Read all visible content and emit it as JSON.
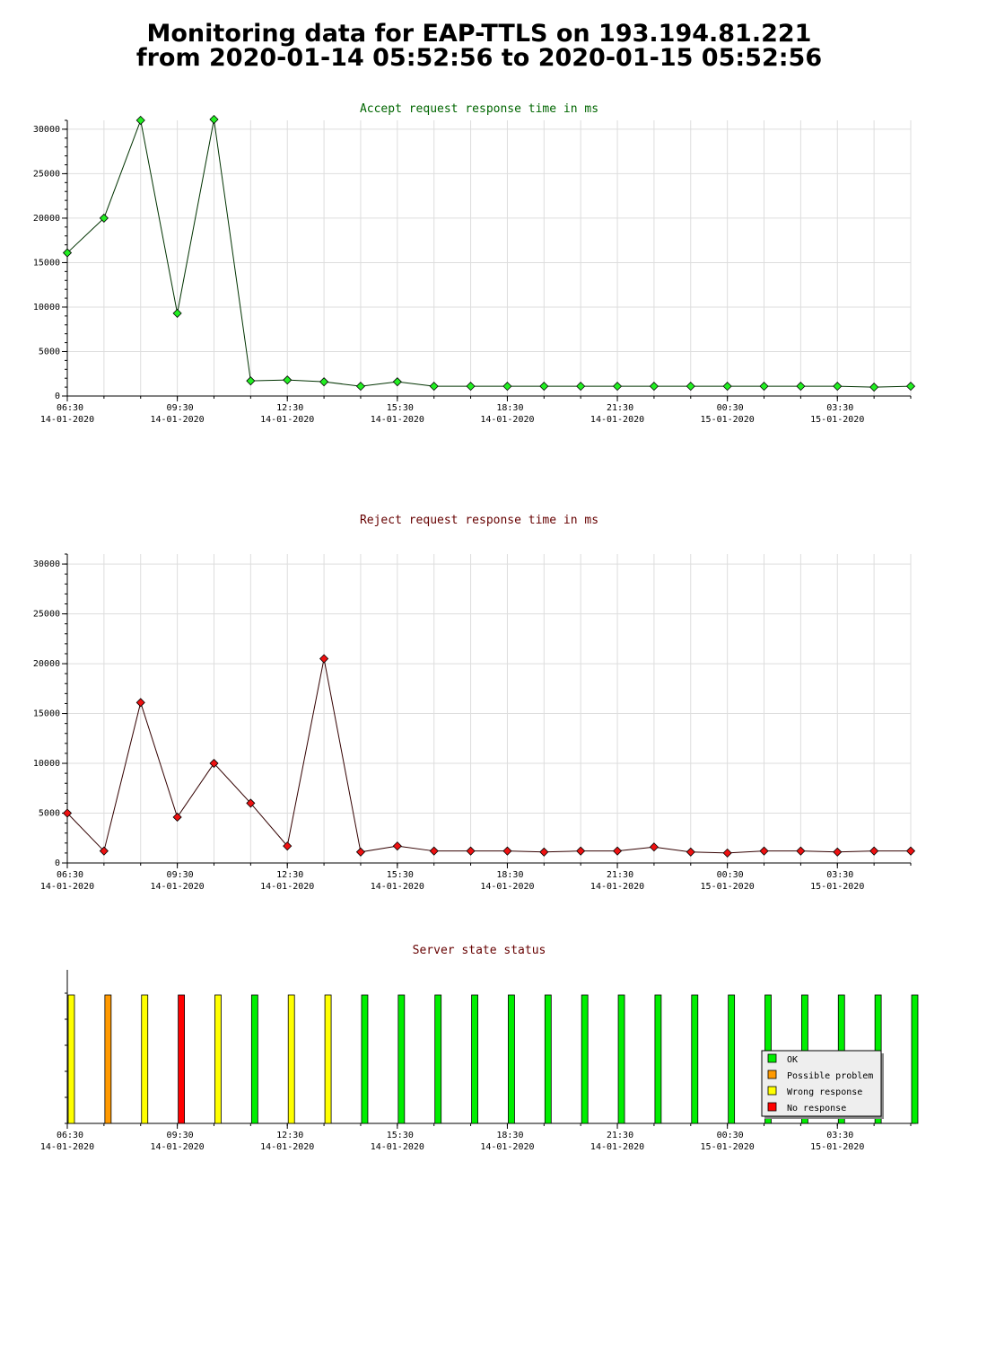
{
  "page": {
    "title_line1": "Monitoring data for EAP-TTLS on 193.194.81.221",
    "title_line2": "from 2020-01-14 05:52:56 to 2020-01-15 05:52:56"
  },
  "colors": {
    "accept_line": "#003300",
    "accept_marker": "#22ee22",
    "reject_line": "#330000",
    "reject_marker": "#ee1111",
    "accept_title": "#006600",
    "reject_title": "#660000",
    "status_title": "#660000",
    "ok": "#00ee00",
    "possible_problem": "#ff9900",
    "wrong_response": "#ffff00",
    "no_response": "#ff0000",
    "grid": "#dddddd"
  },
  "chart_data": [
    {
      "type": "line",
      "title": "Accept request response time in ms",
      "x_tick_labels": [
        {
          "time": "06:30",
          "date": "14-01-2020"
        },
        {
          "time": "09:30",
          "date": "14-01-2020"
        },
        {
          "time": "12:30",
          "date": "14-01-2020"
        },
        {
          "time": "15:30",
          "date": "14-01-2020"
        },
        {
          "time": "18:30",
          "date": "14-01-2020"
        },
        {
          "time": "21:30",
          "date": "14-01-2020"
        },
        {
          "time": "00:30",
          "date": "15-01-2020"
        },
        {
          "time": "03:30",
          "date": "15-01-2020"
        }
      ],
      "y_ticks": [
        "0",
        "5000",
        "10000",
        "15000",
        "20000",
        "25000",
        "30000"
      ],
      "ylim": [
        0,
        31000
      ],
      "x": [
        "06:30",
        "07:30",
        "08:30",
        "09:30",
        "10:30",
        "11:30",
        "12:30",
        "13:30",
        "14:30",
        "15:30",
        "16:30",
        "17:30",
        "18:30",
        "19:30",
        "20:30",
        "21:30",
        "22:30",
        "23:30",
        "00:30",
        "01:30",
        "02:30",
        "03:30",
        "04:30",
        "05:30"
      ],
      "values": [
        16100,
        20000,
        31000,
        9300,
        31100,
        1700,
        1800,
        1600,
        1100,
        1600,
        1100,
        1100,
        1100,
        1100,
        1100,
        1100,
        1100,
        1100,
        1100,
        1100,
        1100,
        1100,
        1000,
        1100
      ],
      "grid": true
    },
    {
      "type": "line",
      "title": "Reject request response time in ms",
      "x_tick_labels": [
        {
          "time": "06:30",
          "date": "14-01-2020"
        },
        {
          "time": "09:30",
          "date": "14-01-2020"
        },
        {
          "time": "12:30",
          "date": "14-01-2020"
        },
        {
          "time": "15:30",
          "date": "14-01-2020"
        },
        {
          "time": "18:30",
          "date": "14-01-2020"
        },
        {
          "time": "21:30",
          "date": "14-01-2020"
        },
        {
          "time": "00:30",
          "date": "15-01-2020"
        },
        {
          "time": "03:30",
          "date": "15-01-2020"
        }
      ],
      "y_ticks": [
        "0",
        "5000",
        "10000",
        "15000",
        "20000",
        "25000",
        "30000"
      ],
      "ylim": [
        0,
        31000
      ],
      "x": [
        "06:30",
        "07:30",
        "08:30",
        "09:30",
        "10:30",
        "11:30",
        "12:30",
        "13:30",
        "14:30",
        "15:30",
        "16:30",
        "17:30",
        "18:30",
        "19:30",
        "20:30",
        "21:30",
        "22:30",
        "23:30",
        "00:30",
        "01:30",
        "02:30",
        "03:30",
        "04:30",
        "05:30"
      ],
      "values": [
        5000,
        1200,
        16100,
        4600,
        10000,
        6000,
        1700,
        20500,
        1100,
        1700,
        1200,
        1200,
        1200,
        1100,
        1200,
        1200,
        1600,
        1100,
        1000,
        1200,
        1200,
        1100,
        1200,
        1200
      ],
      "grid": true
    },
    {
      "type": "bar",
      "title": "Server state status",
      "x_tick_labels": [
        {
          "time": "06:30",
          "date": "14-01-2020"
        },
        {
          "time": "09:30",
          "date": "14-01-2020"
        },
        {
          "time": "12:30",
          "date": "14-01-2020"
        },
        {
          "time": "15:30",
          "date": "14-01-2020"
        },
        {
          "time": "18:30",
          "date": "14-01-2020"
        },
        {
          "time": "21:30",
          "date": "14-01-2020"
        },
        {
          "time": "00:30",
          "date": "15-01-2020"
        },
        {
          "time": "03:30",
          "date": "15-01-2020"
        }
      ],
      "x": [
        "06:30",
        "07:30",
        "08:30",
        "09:30",
        "10:30",
        "11:30",
        "12:30",
        "13:30",
        "14:30",
        "15:30",
        "16:30",
        "17:30",
        "18:30",
        "19:30",
        "20:30",
        "21:30",
        "22:30",
        "23:30",
        "00:30",
        "01:30",
        "02:30",
        "03:30",
        "04:30",
        "05:30"
      ],
      "states": [
        "wrong",
        "possible",
        "wrong",
        "none",
        "wrong",
        "ok",
        "wrong",
        "wrong",
        "ok",
        "ok",
        "ok",
        "ok",
        "ok",
        "ok",
        "ok",
        "ok",
        "ok",
        "ok",
        "ok",
        "ok",
        "ok",
        "ok",
        "ok",
        "ok"
      ],
      "legend": [
        {
          "key": "ok",
          "label": "OK"
        },
        {
          "key": "possible",
          "label": "Possible problem"
        },
        {
          "key": "wrong",
          "label": "Wrong response"
        },
        {
          "key": "none",
          "label": "No response"
        }
      ],
      "legend_position": "bottom-right",
      "grid": false
    }
  ]
}
